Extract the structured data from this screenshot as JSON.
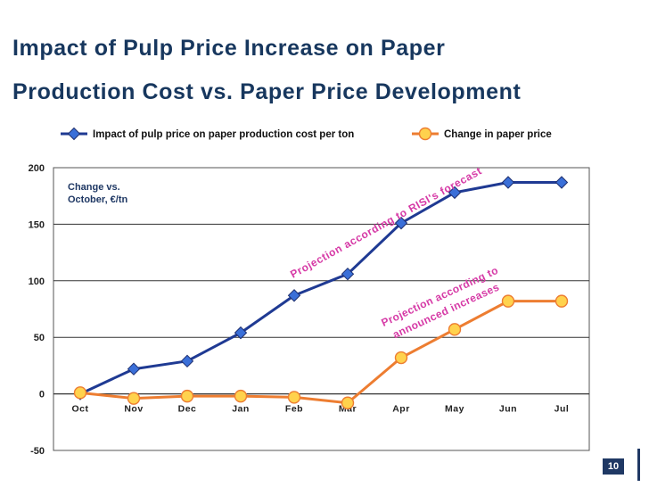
{
  "slide": {
    "title_line1": "Impact of Pulp Price Increase on Paper",
    "title_line2": "Production Cost vs. Paper Price Development",
    "page_number": "10"
  },
  "chart_data": {
    "type": "line",
    "categories": [
      "Oct",
      "Nov",
      "Dec",
      "Jan",
      "Feb",
      "Mar",
      "Apr",
      "May",
      "Jun",
      "Jul"
    ],
    "series": [
      {
        "name": "Impact of pulp price on paper production cost per ton",
        "color": "#1f3a93",
        "marker": "diamond",
        "values": [
          0,
          22,
          29,
          54,
          87,
          106,
          151,
          178,
          187,
          187
        ]
      },
      {
        "name": "Change in paper price",
        "color": "#ed7d31",
        "marker": "circle",
        "values": [
          1,
          -4,
          -2,
          -2,
          -3,
          -8,
          32,
          57,
          82,
          82
        ]
      }
    ],
    "ylim": [
      -50,
      200
    ],
    "yticks": [
      -50,
      0,
      50,
      100,
      150,
      200
    ],
    "ylabel_annotation_line1": "Change vs.",
    "ylabel_annotation_line2": "October, €/tn",
    "annotations": [
      {
        "text": "Projection according to RISI's  forecast",
        "color": "#d63aa6"
      },
      {
        "text_line1": "Projection according to",
        "text_line2": "announced increases",
        "color": "#d63aa6"
      }
    ],
    "legend_position": "top",
    "grid": true
  }
}
